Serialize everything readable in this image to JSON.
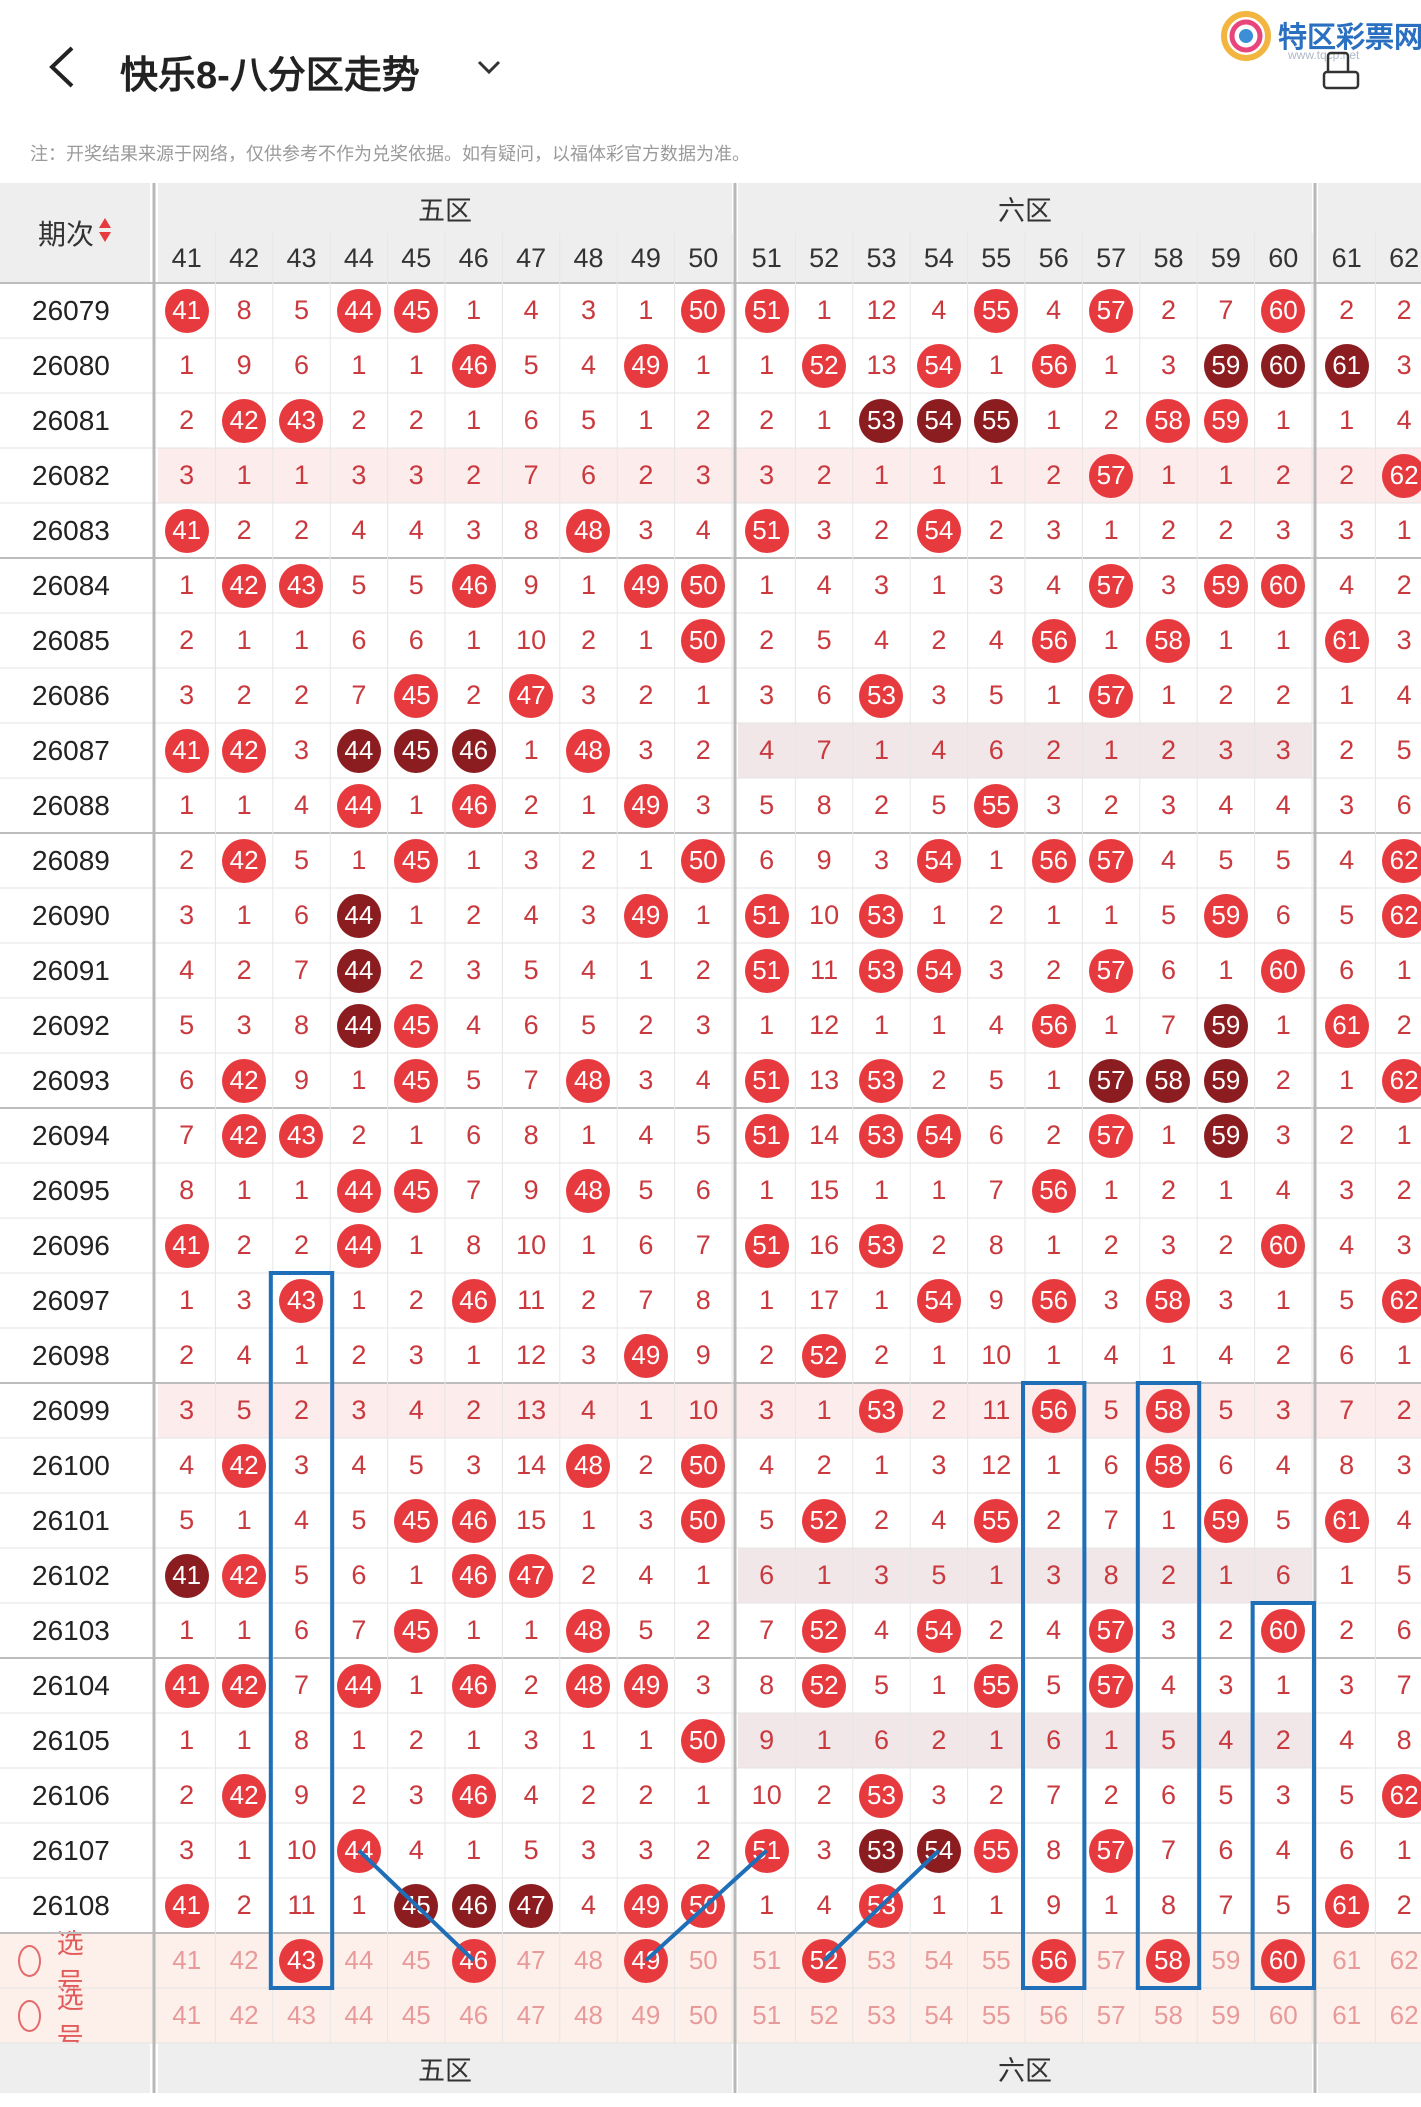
{
  "header": {
    "title": "快乐8-八分区走势",
    "logo_text": "特区彩票网",
    "logo_url": "www.tqcp.net"
  },
  "notice": "注：开奖结果来源于网络，仅供参考不作为兑奖依据。如有疑问，以福体彩官方数据为准。",
  "table": {
    "period_header": "期次",
    "zones": [
      {
        "label": "五区",
        "columns": [
          "41",
          "42",
          "43",
          "44",
          "45",
          "46",
          "47",
          "48",
          "49",
          "50"
        ]
      },
      {
        "label": "六区",
        "columns": [
          "51",
          "52",
          "53",
          "54",
          "55",
          "56",
          "57",
          "58",
          "59",
          "60"
        ]
      },
      {
        "label": "",
        "columns": [
          "61",
          "62"
        ]
      }
    ],
    "rows": [
      {
        "period": "26079",
        "cells": [
          "41",
          "8",
          "5",
          "44",
          "45",
          "1",
          "4",
          "3",
          "1",
          "50",
          "51",
          "1",
          "12",
          "4",
          "55",
          "4",
          "57",
          "2",
          "7",
          "60",
          "2",
          "2"
        ]
      },
      {
        "period": "26080",
        "cells": [
          "1",
          "9",
          "6",
          "1",
          "1",
          "46",
          "5",
          "4",
          "49",
          "1",
          "1",
          "52",
          "13",
          "54",
          "1",
          "56",
          "1",
          "3",
          "59",
          "60",
          "61",
          "3"
        ]
      },
      {
        "period": "26081",
        "cells": [
          "2",
          "42",
          "43",
          "2",
          "2",
          "1",
          "6",
          "5",
          "1",
          "2",
          "2",
          "1",
          "53",
          "54",
          "55",
          "1",
          "2",
          "58",
          "59",
          "1",
          "1",
          "4"
        ]
      },
      {
        "period": "26082",
        "cells": [
          "3",
          "1",
          "1",
          "3",
          "3",
          "2",
          "7",
          "6",
          "2",
          "3",
          "3",
          "2",
          "1",
          "1",
          "1",
          "2",
          "57",
          "1",
          "1",
          "2",
          "2",
          "62"
        ]
      },
      {
        "period": "26083",
        "cells": [
          "41",
          "2",
          "2",
          "4",
          "4",
          "3",
          "8",
          "48",
          "3",
          "4",
          "51",
          "3",
          "2",
          "54",
          "2",
          "3",
          "1",
          "2",
          "2",
          "3",
          "3",
          "1"
        ]
      },
      {
        "period": "26084",
        "cells": [
          "1",
          "42",
          "43",
          "5",
          "5",
          "46",
          "9",
          "1",
          "49",
          "50",
          "1",
          "4",
          "3",
          "1",
          "3",
          "4",
          "57",
          "3",
          "59",
          "60",
          "4",
          "2"
        ]
      },
      {
        "period": "26085",
        "cells": [
          "2",
          "1",
          "1",
          "6",
          "6",
          "1",
          "10",
          "2",
          "1",
          "50",
          "2",
          "5",
          "4",
          "2",
          "4",
          "56",
          "1",
          "58",
          "1",
          "1",
          "61",
          "3"
        ]
      },
      {
        "period": "26086",
        "cells": [
          "3",
          "2",
          "2",
          "7",
          "45",
          "2",
          "47",
          "3",
          "2",
          "1",
          "3",
          "6",
          "53",
          "3",
          "5",
          "1",
          "57",
          "1",
          "2",
          "2",
          "1",
          "4"
        ]
      },
      {
        "period": "26087",
        "cells": [
          "41",
          "42",
          "3",
          "44",
          "45",
          "46",
          "1",
          "48",
          "3",
          "2",
          "4",
          "7",
          "1",
          "4",
          "6",
          "2",
          "1",
          "2",
          "3",
          "3",
          "2",
          "5"
        ]
      },
      {
        "period": "26088",
        "cells": [
          "1",
          "1",
          "4",
          "44",
          "1",
          "46",
          "2",
          "1",
          "49",
          "3",
          "5",
          "8",
          "2",
          "5",
          "55",
          "3",
          "2",
          "3",
          "4",
          "4",
          "3",
          "6"
        ]
      },
      {
        "period": "26089",
        "cells": [
          "2",
          "42",
          "5",
          "1",
          "45",
          "1",
          "3",
          "2",
          "1",
          "50",
          "6",
          "9",
          "3",
          "54",
          "1",
          "56",
          "57",
          "4",
          "5",
          "5",
          "4",
          "62"
        ]
      },
      {
        "period": "26090",
        "cells": [
          "3",
          "1",
          "6",
          "44",
          "1",
          "2",
          "4",
          "3",
          "49",
          "1",
          "51",
          "10",
          "53",
          "1",
          "2",
          "1",
          "1",
          "5",
          "59",
          "6",
          "5",
          "62"
        ]
      },
      {
        "period": "26091",
        "cells": [
          "4",
          "2",
          "7",
          "44",
          "2",
          "3",
          "5",
          "4",
          "1",
          "2",
          "51",
          "11",
          "53",
          "54",
          "3",
          "2",
          "57",
          "6",
          "1",
          "60",
          "6",
          "1"
        ]
      },
      {
        "period": "26092",
        "cells": [
          "5",
          "3",
          "8",
          "44",
          "45",
          "4",
          "6",
          "5",
          "2",
          "3",
          "1",
          "12",
          "1",
          "1",
          "4",
          "56",
          "1",
          "7",
          "59",
          "1",
          "61",
          "2"
        ]
      },
      {
        "period": "26093",
        "cells": [
          "6",
          "42",
          "9",
          "1",
          "45",
          "5",
          "7",
          "48",
          "3",
          "4",
          "51",
          "13",
          "53",
          "2",
          "5",
          "1",
          "57",
          "58",
          "59",
          "2",
          "1",
          "62"
        ]
      },
      {
        "period": "26094",
        "cells": [
          "7",
          "42",
          "43",
          "2",
          "1",
          "6",
          "8",
          "1",
          "4",
          "5",
          "51",
          "14",
          "53",
          "54",
          "6",
          "2",
          "57",
          "1",
          "59",
          "3",
          "2",
          "1"
        ]
      },
      {
        "period": "26095",
        "cells": [
          "8",
          "1",
          "1",
          "44",
          "45",
          "7",
          "9",
          "48",
          "5",
          "6",
          "1",
          "15",
          "1",
          "1",
          "7",
          "56",
          "1",
          "2",
          "1",
          "4",
          "3",
          "2"
        ]
      },
      {
        "period": "26096",
        "cells": [
          "41",
          "2",
          "2",
          "44",
          "1",
          "8",
          "10",
          "1",
          "6",
          "7",
          "51",
          "16",
          "53",
          "2",
          "8",
          "1",
          "2",
          "3",
          "2",
          "60",
          "4",
          "3"
        ]
      },
      {
        "period": "26097",
        "cells": [
          "1",
          "3",
          "43",
          "1",
          "2",
          "46",
          "11",
          "2",
          "7",
          "8",
          "1",
          "17",
          "1",
          "54",
          "9",
          "56",
          "3",
          "58",
          "3",
          "1",
          "5",
          "62"
        ]
      },
      {
        "period": "26098",
        "cells": [
          "2",
          "4",
          "1",
          "2",
          "3",
          "1",
          "12",
          "3",
          "49",
          "9",
          "2",
          "52",
          "2",
          "1",
          "10",
          "1",
          "4",
          "1",
          "4",
          "2",
          "6",
          "1"
        ]
      },
      {
        "period": "26099",
        "cells": [
          "3",
          "5",
          "2",
          "3",
          "4",
          "2",
          "13",
          "4",
          "1",
          "10",
          "3",
          "1",
          "53",
          "2",
          "11",
          "56",
          "5",
          "58",
          "5",
          "3",
          "7",
          "2"
        ]
      },
      {
        "period": "26100",
        "cells": [
          "4",
          "42",
          "3",
          "4",
          "5",
          "3",
          "14",
          "48",
          "2",
          "50",
          "4",
          "2",
          "1",
          "3",
          "12",
          "1",
          "6",
          "58",
          "6",
          "4",
          "8",
          "3"
        ]
      },
      {
        "period": "26101",
        "cells": [
          "5",
          "1",
          "4",
          "5",
          "45",
          "46",
          "15",
          "1",
          "3",
          "50",
          "5",
          "52",
          "2",
          "4",
          "55",
          "2",
          "7",
          "1",
          "59",
          "5",
          "61",
          "4"
        ]
      },
      {
        "period": "26102",
        "cells": [
          "41",
          "42",
          "5",
          "6",
          "1",
          "46",
          "47",
          "2",
          "4",
          "1",
          "6",
          "1",
          "3",
          "5",
          "1",
          "3",
          "8",
          "2",
          "1",
          "6",
          "1",
          "5"
        ]
      },
      {
        "period": "26103",
        "cells": [
          "1",
          "1",
          "6",
          "7",
          "45",
          "1",
          "1",
          "48",
          "5",
          "2",
          "7",
          "52",
          "4",
          "54",
          "2",
          "4",
          "57",
          "3",
          "2",
          "60",
          "2",
          "6"
        ]
      },
      {
        "period": "26104",
        "cells": [
          "41",
          "42",
          "7",
          "44",
          "1",
          "46",
          "2",
          "48",
          "49",
          "3",
          "8",
          "52",
          "5",
          "1",
          "55",
          "5",
          "57",
          "4",
          "3",
          "1",
          "3",
          "7"
        ]
      },
      {
        "period": "26105",
        "cells": [
          "1",
          "1",
          "8",
          "1",
          "2",
          "1",
          "3",
          "1",
          "1",
          "50",
          "9",
          "1",
          "6",
          "2",
          "1",
          "6",
          "1",
          "5",
          "4",
          "2",
          "4",
          "8"
        ]
      },
      {
        "period": "26106",
        "cells": [
          "2",
          "42",
          "9",
          "2",
          "3",
          "46",
          "4",
          "2",
          "2",
          "1",
          "10",
          "2",
          "53",
          "3",
          "2",
          "7",
          "2",
          "6",
          "5",
          "3",
          "5",
          "62"
        ]
      },
      {
        "period": "26107",
        "cells": [
          "3",
          "1",
          "10",
          "44",
          "4",
          "1",
          "5",
          "3",
          "3",
          "2",
          "51",
          "3",
          "53",
          "54",
          "55",
          "8",
          "57",
          "7",
          "6",
          "4",
          "6",
          "1"
        ]
      },
      {
        "period": "26108",
        "cells": [
          "41",
          "2",
          "11",
          "1",
          "45",
          "46",
          "47",
          "4",
          "49",
          "50",
          "1",
          "4",
          "53",
          "1",
          "1",
          "9",
          "1",
          "8",
          "7",
          "5",
          "61",
          "2"
        ]
      }
    ],
    "dark_balls": [
      "26080:59",
      "26080:60",
      "26080:61",
      "26081:53",
      "26081:54",
      "26081:55",
      "26087:44",
      "26087:45",
      "26087:46",
      "26090:44",
      "26091:44",
      "26092:44",
      "26092:59",
      "26093:57",
      "26093:58",
      "26093:59",
      "26094:59",
      "26102:41",
      "26107:53",
      "26107:54",
      "26108:45",
      "26108:46",
      "26108:47"
    ],
    "select_rows": [
      {
        "label": "选号",
        "numbers": [
          "41",
          "42",
          "43",
          "44",
          "45",
          "46",
          "47",
          "48",
          "49",
          "50",
          "51",
          "52",
          "53",
          "54",
          "55",
          "56",
          "57",
          "58",
          "59",
          "60",
          "61",
          "62"
        ],
        "picked": [
          "43",
          "46",
          "49",
          "52",
          "56",
          "58",
          "60"
        ]
      },
      {
        "label": "选号",
        "numbers": [
          "41",
          "42",
          "43",
          "44",
          "45",
          "46",
          "47",
          "48",
          "49",
          "50",
          "51",
          "52",
          "53",
          "54",
          "55",
          "56",
          "57",
          "58",
          "59",
          "60",
          "61",
          "62"
        ],
        "picked": []
      }
    ],
    "footer_zones": [
      "五区",
      "六区"
    ]
  },
  "colors": {
    "ball_red": "#e63a3e",
    "ball_dark": "#8b1c20",
    "highlight_box": "#1f6fb8",
    "row_tint": "#fcecec",
    "row_tint_gray": "#f1e7e8"
  }
}
